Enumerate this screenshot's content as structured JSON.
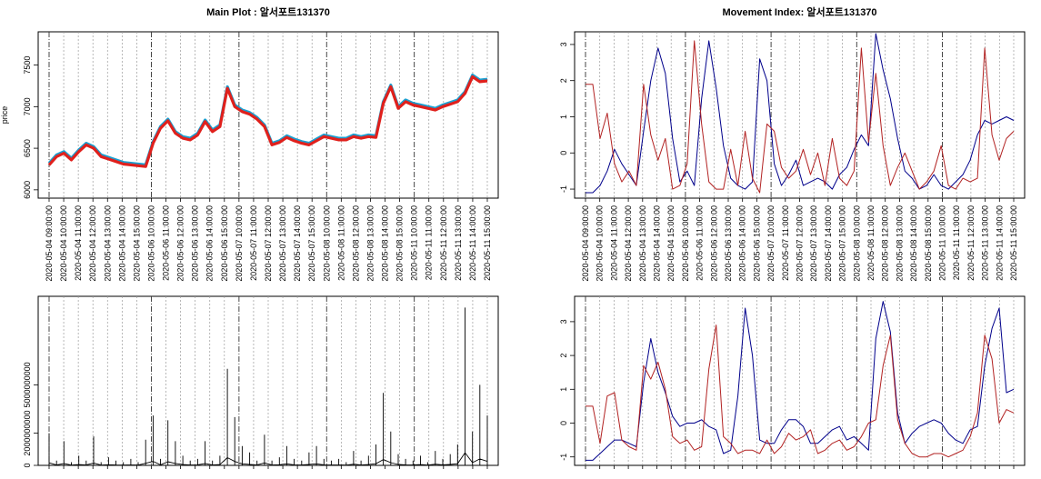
{
  "x_labels": [
    "2020-05-04 09:00:00",
    "2020-05-04 10:00:00",
    "2020-05-04 11:00:00",
    "2020-05-04 12:00:00",
    "2020-05-04 13:00:00",
    "2020-05-04 14:00:00",
    "2020-05-04 15:00:00",
    "2020-05-06 10:00:00",
    "2020-05-06 11:00:00",
    "2020-05-06 12:00:00",
    "2020-05-06 13:00:00",
    "2020-05-06 14:00:00",
    "2020-05-06 15:00:00",
    "2020-05-07 10:00:00",
    "2020-05-07 11:00:00",
    "2020-05-07 12:00:00",
    "2020-05-07 13:00:00",
    "2020-05-07 14:00:00",
    "2020-05-07 15:00:00",
    "2020-05-08 10:00:00",
    "2020-05-08 11:00:00",
    "2020-05-08 12:00:00",
    "2020-05-08 13:00:00",
    "2020-05-08 14:00:00",
    "2020-05-08 15:00:00",
    "2020-05-11 10:00:00",
    "2020-05-11 11:00:00",
    "2020-05-11 12:00:00",
    "2020-05-11 13:00:00",
    "2020-05-11 14:00:00",
    "2020-05-11 15:00:00"
  ],
  "day_start_indices": [
    0,
    7,
    13,
    19,
    25
  ],
  "chart_data": [
    {
      "id": "main",
      "type": "line",
      "title": "Main Plot : 알서포트131370",
      "xlabel": "",
      "ylabel": "price",
      "ylim": [
        5900,
        7900
      ],
      "yticks": [
        6000,
        6500,
        7000,
        7500
      ],
      "series": [
        {
          "color": "#1a9fd0",
          "values": [
            6320,
            6420,
            6460,
            6380,
            6480,
            6560,
            6520,
            6420,
            6390,
            6360,
            6330,
            6320,
            6310,
            6300,
            6580,
            6760,
            6850,
            6700,
            6640,
            6620,
            6680,
            6840,
            6720,
            6780,
            7240,
            7020,
            6960,
            6930,
            6870,
            6780,
            6560,
            6590,
            6650,
            6610,
            6580,
            6560,
            6610,
            6660,
            6640,
            6620,
            6620,
            6660,
            6640,
            6660,
            6650,
            7060,
            7260,
            7000,
            7080,
            7040,
            7020,
            7000,
            6980,
            7020,
            7050,
            7080,
            7180,
            7380,
            7320,
            7330
          ]
        },
        {
          "color": "#e0201c",
          "values": [
            6300,
            6400,
            6440,
            6360,
            6460,
            6540,
            6500,
            6400,
            6370,
            6340,
            6310,
            6300,
            6290,
            6280,
            6560,
            6740,
            6830,
            6680,
            6620,
            6600,
            6660,
            6820,
            6700,
            6760,
            7220,
            7000,
            6940,
            6910,
            6850,
            6760,
            6540,
            6570,
            6630,
            6590,
            6560,
            6540,
            6590,
            6640,
            6620,
            6600,
            6600,
            6640,
            6620,
            6640,
            6630,
            7040,
            7240,
            6980,
            7060,
            7020,
            7000,
            6980,
            6960,
            7000,
            7030,
            7060,
            7160,
            7360,
            7300,
            7310
          ]
        }
      ]
    },
    {
      "id": "volume",
      "type": "line",
      "title": "",
      "xlabel": "",
      "ylabel": "",
      "ylim": [
        0,
        10500000000
      ],
      "yticks": [
        0,
        2000000000,
        5000000000
      ],
      "ytick_labels": [
        "0",
        "2000000000",
        "5000000000"
      ],
      "series": [
        {
          "color": "#000000",
          "values": [
            2000000000,
            300000000,
            1500000000,
            200000000,
            600000000,
            300000000,
            1800000000,
            200000000,
            500000000,
            300000000,
            200000000,
            400000000,
            200000000,
            1600000000,
            3100000000,
            400000000,
            2800000000,
            1500000000,
            600000000,
            300000000,
            400000000,
            1500000000,
            300000000,
            600000000,
            6000000000,
            3000000000,
            1200000000,
            800000000,
            300000000,
            1900000000,
            300000000,
            500000000,
            1200000000,
            400000000,
            300000000,
            800000000,
            1200000000,
            400000000,
            300000000,
            400000000,
            200000000,
            900000000,
            300000000,
            600000000,
            1300000000,
            4500000000,
            2100000000,
            700000000,
            400000000,
            300000000,
            600000000,
            200000000,
            900000000,
            400000000,
            700000000,
            1300000000,
            9800000000,
            2100000000,
            5000000000,
            3100000000
          ]
        }
      ]
    },
    {
      "id": "movement1",
      "type": "line",
      "title": "Movement Index: 알서포트131370",
      "xlabel": "",
      "ylabel": "",
      "ylim": [
        -1.25,
        3.35
      ],
      "yticks": [
        -1,
        0,
        1,
        2,
        3
      ],
      "series": [
        {
          "color": "#00008b",
          "values": [
            -1.1,
            -1.1,
            -0.9,
            -0.5,
            0.1,
            -0.3,
            -0.6,
            -0.9,
            0.6,
            2.0,
            2.9,
            2.2,
            0.4,
            -0.8,
            -0.5,
            -0.9,
            1.5,
            3.1,
            1.8,
            0.2,
            -0.7,
            -0.9,
            -1.0,
            -0.8,
            2.6,
            2.0,
            -0.3,
            -0.9,
            -0.6,
            -0.2,
            -0.9,
            -0.8,
            -0.7,
            -0.8,
            -1.0,
            -0.6,
            -0.4,
            0.1,
            0.5,
            0.2,
            3.3,
            2.3,
            1.5,
            0.4,
            -0.5,
            -0.7,
            -1.0,
            -0.9,
            -0.6,
            -0.9,
            -1.0,
            -0.8,
            -0.6,
            -0.2,
            0.5,
            0.9,
            0.8,
            0.9,
            1.0,
            0.9
          ]
        },
        {
          "color": "#b22222",
          "values": [
            1.9,
            1.9,
            0.4,
            1.1,
            -0.3,
            -0.8,
            -0.5,
            -0.9,
            1.9,
            0.5,
            -0.2,
            0.4,
            -1.0,
            -0.9,
            -0.3,
            3.1,
            0.8,
            -0.8,
            -1.0,
            -1.0,
            0.1,
            -0.9,
            0.6,
            -0.7,
            -1.1,
            0.8,
            0.6,
            -0.4,
            -0.7,
            -0.5,
            0.1,
            -0.6,
            0.0,
            -0.9,
            0.4,
            -0.7,
            -0.9,
            -0.5,
            2.9,
            0.3,
            2.2,
            0.2,
            -0.9,
            -0.4,
            0.0,
            -0.5,
            -1.0,
            -0.8,
            -0.5,
            0.2,
            -0.9,
            -1.0,
            -0.7,
            -0.8,
            -0.7,
            2.9,
            0.5,
            -0.2,
            0.4,
            0.6
          ]
        }
      ]
    },
    {
      "id": "movement2",
      "type": "line",
      "title": "",
      "xlabel": "",
      "ylabel": "",
      "ylim": [
        -1.25,
        3.75
      ],
      "yticks": [
        -1,
        0,
        1,
        2,
        3
      ],
      "series": [
        {
          "color": "#00008b",
          "values": [
            -1.1,
            -1.1,
            -0.9,
            -0.7,
            -0.5,
            -0.5,
            -0.6,
            -0.7,
            1.2,
            2.5,
            1.5,
            0.9,
            0.2,
            -0.1,
            0.0,
            0.0,
            0.1,
            -0.1,
            -0.2,
            -0.9,
            -0.8,
            0.8,
            3.4,
            2.0,
            -0.5,
            -0.6,
            -0.6,
            -0.2,
            0.1,
            0.1,
            -0.1,
            -0.6,
            -0.6,
            -0.4,
            -0.2,
            -0.1,
            -0.5,
            -0.4,
            -0.6,
            -0.8,
            2.5,
            3.6,
            2.7,
            0.3,
            -0.6,
            -0.3,
            -0.1,
            0.0,
            0.1,
            0.0,
            -0.3,
            -0.5,
            -0.6,
            -0.2,
            -0.1,
            1.7,
            2.8,
            3.4,
            0.9,
            1.0
          ]
        },
        {
          "color": "#b22222",
          "values": [
            0.5,
            0.5,
            -0.6,
            0.8,
            0.9,
            -0.5,
            -0.7,
            -0.8,
            1.7,
            1.3,
            1.8,
            1.0,
            -0.4,
            -0.6,
            -0.5,
            -0.8,
            -0.7,
            1.6,
            2.9,
            -0.4,
            -0.6,
            -0.9,
            -0.8,
            -0.8,
            -0.9,
            -0.5,
            -0.9,
            -0.7,
            -0.3,
            -0.5,
            -0.4,
            -0.2,
            -0.9,
            -0.8,
            -0.6,
            -0.5,
            -0.8,
            -0.7,
            -0.4,
            0.0,
            0.1,
            1.7,
            2.6,
            0.1,
            -0.6,
            -0.9,
            -1.0,
            -1.0,
            -0.9,
            -0.9,
            -1.0,
            -0.9,
            -0.8,
            -0.4,
            0.3,
            2.6,
            1.9,
            0.0,
            0.4,
            0.3
          ]
        }
      ]
    }
  ]
}
